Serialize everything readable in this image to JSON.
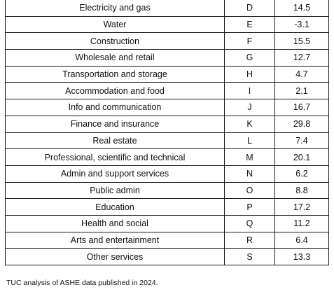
{
  "table": {
    "rows": [
      {
        "industry": "Electricity and gas",
        "code": "D",
        "value": "14.5"
      },
      {
        "industry": "Water",
        "code": "E",
        "value": "-3.1"
      },
      {
        "industry": "Construction",
        "code": "F",
        "value": "15.5"
      },
      {
        "industry": "Wholesale and retail",
        "code": "G",
        "value": "12.7"
      },
      {
        "industry": "Transportation and storage",
        "code": "H",
        "value": "4.7"
      },
      {
        "industry": "Accommodation and food",
        "code": "I",
        "value": "2.1"
      },
      {
        "industry": "Info and communication",
        "code": "J",
        "value": "16.7"
      },
      {
        "industry": "Finance and insurance",
        "code": "K",
        "value": "29.8"
      },
      {
        "industry": "Real estate",
        "code": "L",
        "value": "7.4"
      },
      {
        "industry": "Professional, scientific and technical",
        "code": "M",
        "value": "20.1"
      },
      {
        "industry": "Admin and support services",
        "code": "N",
        "value": "6.2"
      },
      {
        "industry": "Public admin",
        "code": "O",
        "value": "8.8"
      },
      {
        "industry": "Education",
        "code": "P",
        "value": "17.2"
      },
      {
        "industry": "Health and social",
        "code": "Q",
        "value": "11.2"
      },
      {
        "industry": "Arts and entertainment",
        "code": "R",
        "value": "6.4"
      },
      {
        "industry": "Other services",
        "code": "S",
        "value": "13.3"
      }
    ]
  },
  "caption": "TUC analysis of ASHE data published in 2024."
}
